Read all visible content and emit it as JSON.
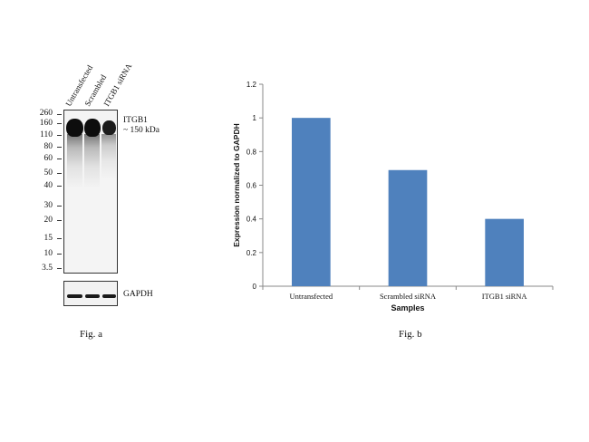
{
  "blot": {
    "lanes": [
      "Untransfected",
      "Scrambled",
      "ITGB1 siRNA"
    ],
    "mw_markers": [
      "260",
      "160",
      "110",
      "80",
      "60",
      "50",
      "40",
      "30",
      "20",
      "15",
      "10",
      "3.5"
    ],
    "target_label": "ITGB1",
    "target_size": "~ 150 kDa",
    "loading_control": "GAPDH",
    "caption": "Fig. a"
  },
  "chart_data": {
    "type": "bar",
    "categories": [
      "Untransfected",
      "Scrambled siRNA",
      "ITGB1 siRNA"
    ],
    "values": [
      1.0,
      0.69,
      0.4
    ],
    "title": "",
    "xlabel": "Samples",
    "ylabel": "Expression normalized to GAPDH",
    "ylim": [
      0,
      1.2
    ],
    "yticks": [
      "0",
      "0.2",
      "0.4",
      "0.6",
      "0.8",
      "1",
      "1.2"
    ],
    "bar_color": "#4f81bd",
    "grid": false,
    "caption": "Fig. b"
  }
}
